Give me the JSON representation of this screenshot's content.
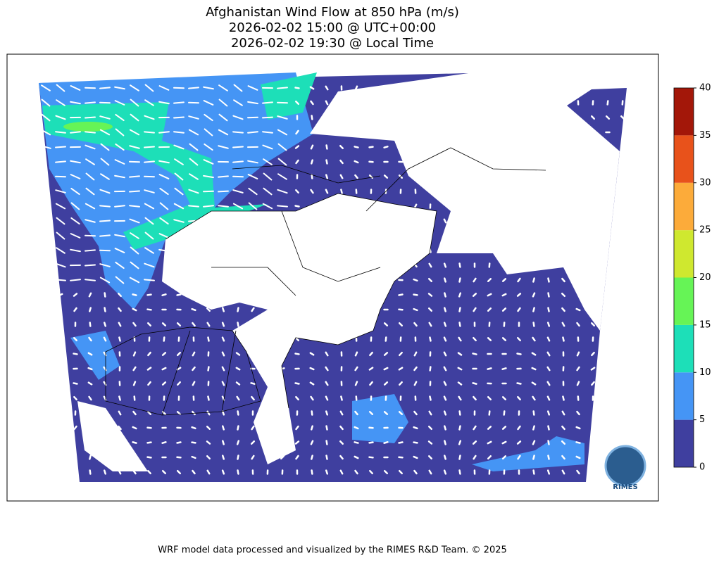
{
  "title": [
    "Afghanistan Wind Flow at 850 hPa (m/s)",
    "2026-02-02 15:00 @ UTC+00:00",
    "2026-02-02 19:30 @ Local Time"
  ],
  "colorbar": {
    "lim": [
      0,
      40
    ],
    "ticks": [
      0,
      5,
      10,
      15,
      20,
      25,
      30,
      35,
      40
    ],
    "colors": [
      "#3f3f9f",
      "#4595f5",
      "#1ddfb8",
      "#66f456",
      "#cfe82f",
      "#fcab3a",
      "#e8521b",
      "#a31709"
    ]
  },
  "logo": "RIMES",
  "footer": "WRF model data processed and visualized by the RIMES R&D Team. © 2025"
}
